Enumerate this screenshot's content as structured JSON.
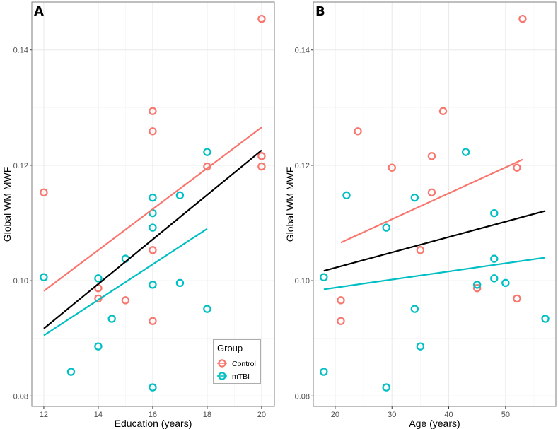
{
  "colors": {
    "Control": "#F8766D",
    "mTBI": "#00BFC4",
    "overall": "#000000"
  },
  "chart_data": [
    {
      "type": "scatter",
      "panel": "A",
      "xlabel": "Education (years)",
      "ylabel": "Global WM MWF",
      "xlim": [
        11.56,
        20.47
      ],
      "ylim": [
        0.0782,
        0.1483
      ],
      "xticks": [
        12,
        14,
        16,
        18,
        20
      ],
      "yticks": [
        0.08,
        0.1,
        0.12,
        0.14
      ],
      "ytick_labels": [
        "0.08",
        "0.10",
        "0.12",
        "0.14"
      ],
      "legend": {
        "title": "Group",
        "entries": [
          "Control",
          "mTBI"
        ],
        "placement": "bottom-right"
      },
      "series": [
        {
          "name": "Control",
          "points": [
            [
              12,
              0.1153
            ],
            [
              20,
              0.1454
            ],
            [
              16,
              0.1294
            ],
            [
              16,
              0.1259
            ],
            [
              18,
              0.1198
            ],
            [
              20,
              0.1216
            ],
            [
              20,
              0.1198
            ],
            [
              16,
              0.1053
            ],
            [
              14,
              0.0987
            ],
            [
              14,
              0.0969
            ],
            [
              15,
              0.0966
            ],
            [
              16,
              0.093
            ]
          ],
          "fit": [
            [
              12,
              0.0982
            ],
            [
              20,
              0.1266
            ]
          ]
        },
        {
          "name": "mTBI",
          "points": [
            [
              12,
              0.1006
            ],
            [
              18,
              0.1223
            ],
            [
              16,
              0.1144
            ],
            [
              17,
              0.1148
            ],
            [
              16,
              0.1117
            ],
            [
              16,
              0.1092
            ],
            [
              15,
              0.1038
            ],
            [
              14,
              0.1004
            ],
            [
              16,
              0.0993
            ],
            [
              17,
              0.0996
            ],
            [
              14.5,
              0.0934
            ],
            [
              18,
              0.0951
            ],
            [
              14,
              0.0886
            ],
            [
              13,
              0.0842
            ],
            [
              16,
              0.0815
            ]
          ],
          "fit": [
            [
              12,
              0.0905
            ],
            [
              18,
              0.109
            ]
          ]
        },
        {
          "name": "overall",
          "fit": [
            [
              12,
              0.0917
            ],
            [
              20,
              0.1226
            ]
          ]
        }
      ]
    },
    {
      "type": "scatter",
      "panel": "B",
      "xlabel": "Age (years)",
      "ylabel": "Global WM MWF",
      "xlim": [
        16.15,
        58.86
      ],
      "ylim": [
        0.0782,
        0.1483
      ],
      "xticks": [
        20,
        30,
        40,
        50
      ],
      "yticks": [
        0.08,
        0.1,
        0.12,
        0.14
      ],
      "ytick_labels": [
        "0.08",
        "0.10",
        "0.12",
        "0.14"
      ],
      "series": [
        {
          "name": "Control",
          "points": [
            [
              53,
              0.1454
            ],
            [
              39,
              0.1294
            ],
            [
              24,
              0.1259
            ],
            [
              37,
              0.1216
            ],
            [
              30,
              0.1196
            ],
            [
              52,
              0.1196
            ],
            [
              37,
              0.1153
            ],
            [
              35,
              0.1053
            ],
            [
              45,
              0.0987
            ],
            [
              21,
              0.0966
            ],
            [
              52,
              0.0969
            ],
            [
              21,
              0.093
            ]
          ],
          "fit": [
            [
              21,
              0.1066
            ],
            [
              53,
              0.121
            ]
          ]
        },
        {
          "name": "mTBI",
          "points": [
            [
              22,
              0.1148
            ],
            [
              43,
              0.1223
            ],
            [
              34,
              0.1144
            ],
            [
              29,
              0.1092
            ],
            [
              48,
              0.1117
            ],
            [
              48,
              0.1038
            ],
            [
              18,
              0.1006
            ],
            [
              45,
              0.0993
            ],
            [
              48,
              0.1004
            ],
            [
              50,
              0.0996
            ],
            [
              34,
              0.0951
            ],
            [
              57,
              0.0934
            ],
            [
              35,
              0.0886
            ],
            [
              18,
              0.0842
            ],
            [
              29,
              0.0815
            ]
          ],
          "fit": [
            [
              18,
              0.0985
            ],
            [
              57,
              0.104
            ]
          ]
        },
        {
          "name": "overall",
          "fit": [
            [
              18,
              0.1017
            ],
            [
              57,
              0.1121
            ]
          ]
        }
      ]
    }
  ]
}
